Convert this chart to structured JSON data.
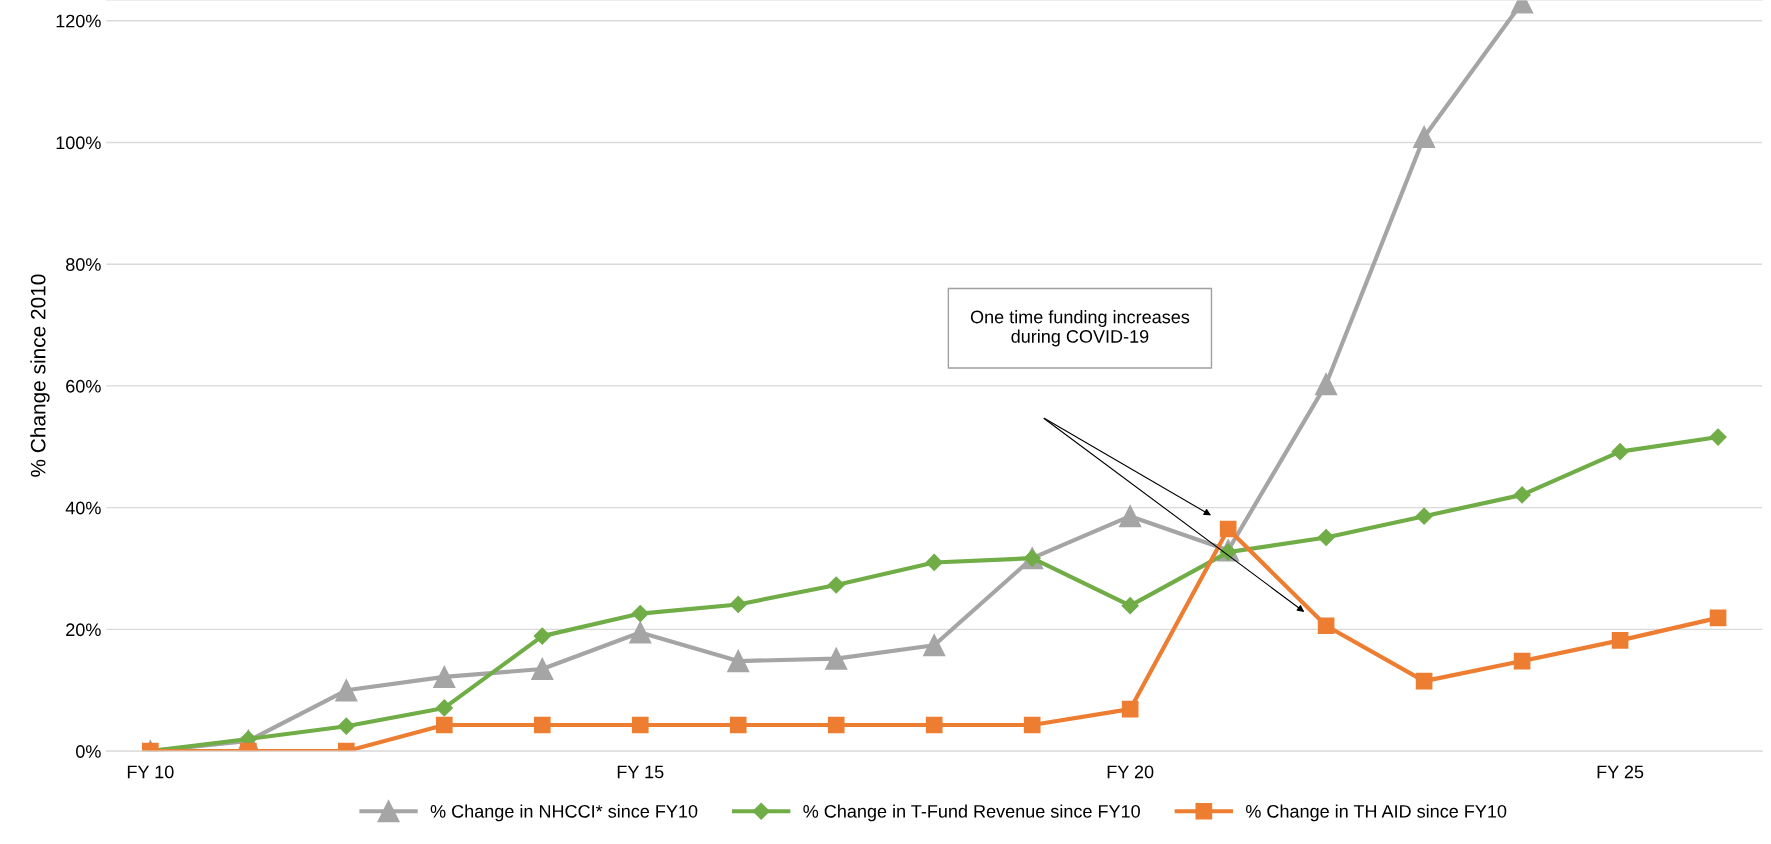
{
  "chart_data": {
    "type": "line",
    "ylabel": "% Change since 2010",
    "categories": [
      "FY 10",
      null,
      null,
      null,
      null,
      "FY 15",
      null,
      null,
      null,
      null,
      "FY 20",
      null,
      null,
      null,
      null,
      "FY 25",
      null
    ],
    "series": [
      {
        "name": "% Change in NHCCI* since FY10",
        "color": "#a5a5a5",
        "marker": "triangle",
        "values": [
          0,
          1.7,
          10.0,
          12.2,
          13.5,
          19.5,
          14.8,
          15.2,
          17.4,
          31.7,
          38.6,
          33.0,
          60.3,
          100.9,
          123,
          null,
          null
        ]
      },
      {
        "name": "% Change in T-Fund Revenue since FY10",
        "color": "#70ad47",
        "marker": "diamond",
        "values": [
          0,
          2.0,
          4.1,
          7.1,
          18.9,
          22.6,
          24.1,
          27.3,
          31.0,
          31.7,
          23.9,
          32.7,
          35.1,
          38.6,
          42.1,
          49.2,
          51.6
        ]
      },
      {
        "name": "% Change in TH AID since FY10",
        "color": "#ed7d31",
        "marker": "square",
        "values": [
          0,
          0,
          0,
          4.3,
          4.3,
          4.3,
          4.3,
          4.3,
          4.3,
          4.3,
          6.9,
          36.5,
          20.6,
          11.5,
          14.8,
          18.2,
          21.9
        ]
      }
    ],
    "ylim": [
      0,
      123.4
    ],
    "yticks": [
      {
        "value": 0,
        "label": "0%"
      },
      {
        "value": 20,
        "label": "20%"
      },
      {
        "value": 40,
        "label": "40%"
      },
      {
        "value": 60,
        "label": "60%"
      },
      {
        "value": 80,
        "label": "80%"
      },
      {
        "value": 100,
        "label": "100%"
      },
      {
        "value": 120,
        "label": "120%"
      }
    ],
    "grid": "y",
    "legend": "bottom",
    "line_style": "solid",
    "annotations": [
      "One time funding increases\nduring COVID-19"
    ]
  }
}
